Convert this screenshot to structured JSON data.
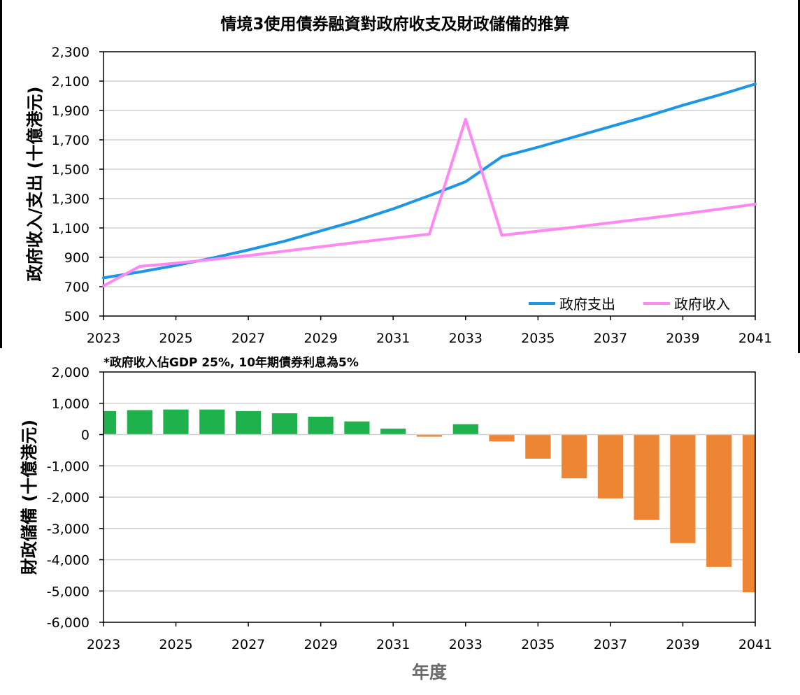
{
  "title": "情境3使用債券融資對政府收支及財政儲備的推算",
  "footnote": "*政府收入佔GDP 25%, 10年期債券利息為5%",
  "colors": {
    "expenditure": "#1e96e6",
    "revenue": "#ff88f2",
    "positive_bar": "#1fb14c",
    "negative_bar": "#ee8535",
    "grid": "#d0d0d0",
    "axis": "#000000",
    "xlabel": "#6b6b6b"
  },
  "chart_data": [
    {
      "type": "line",
      "title": "情境3使用債券融資對政府收支及財政儲備的推算",
      "ylabel": "政府收入/支出 (十億港元)",
      "xlabel": "",
      "x": [
        2023,
        2024,
        2025,
        2026,
        2027,
        2028,
        2029,
        2030,
        2031,
        2032,
        2033,
        2034,
        2035,
        2036,
        2037,
        2038,
        2039,
        2040,
        2041
      ],
      "xticks": [
        "2023",
        "2025",
        "2027",
        "2029",
        "2031",
        "2033",
        "2035",
        "2037",
        "2039",
        "2041"
      ],
      "xlim": [
        2023,
        2041
      ],
      "ylim": [
        500,
        2300
      ],
      "yticks": [
        "500",
        "700",
        "900",
        "1,100",
        "1,300",
        "1,500",
        "1,700",
        "1,900",
        "2,100",
        "2,300"
      ],
      "grid": true,
      "legend": "bottom-right",
      "series": [
        {
          "name": "政府支出",
          "values": [
            760,
            800,
            845,
            895,
            950,
            1010,
            1080,
            1150,
            1230,
            1320,
            1415,
            1585,
            1650,
            1720,
            1790,
            1860,
            1935,
            2005,
            2080
          ]
        },
        {
          "name": "政府收入",
          "values": [
            705,
            838,
            860,
            885,
            912,
            942,
            972,
            1002,
            1030,
            1058,
            1840,
            1050,
            1078,
            1105,
            1135,
            1165,
            1195,
            1228,
            1262
          ]
        }
      ]
    },
    {
      "type": "bar",
      "title": "",
      "subtitle": "*政府收入佔GDP 25%, 10年期債券利息為5%",
      "ylabel": "財政儲備 (十億港元)",
      "xlabel": "年度",
      "categories": [
        2023,
        2024,
        2025,
        2026,
        2027,
        2028,
        2029,
        2030,
        2031,
        2032,
        2033,
        2034,
        2035,
        2036,
        2037,
        2038,
        2039,
        2040,
        2041
      ],
      "xticks": [
        "2023",
        "2025",
        "2027",
        "2029",
        "2031",
        "2033",
        "2035",
        "2037",
        "2039",
        "2041"
      ],
      "xlim": [
        2023,
        2041
      ],
      "ylim": [
        -6000,
        2000
      ],
      "yticks": [
        "2,000",
        "1,000",
        "0",
        "-1,000",
        "-2,000",
        "-3,000",
        "-4,000",
        "-5,000",
        "-6,000"
      ],
      "grid": true,
      "values": [
        750,
        780,
        800,
        800,
        750,
        680,
        570,
        420,
        190,
        -70,
        330,
        -220,
        -770,
        -1400,
        -2040,
        -2730,
        -3470,
        -4230,
        -5040
      ]
    }
  ]
}
